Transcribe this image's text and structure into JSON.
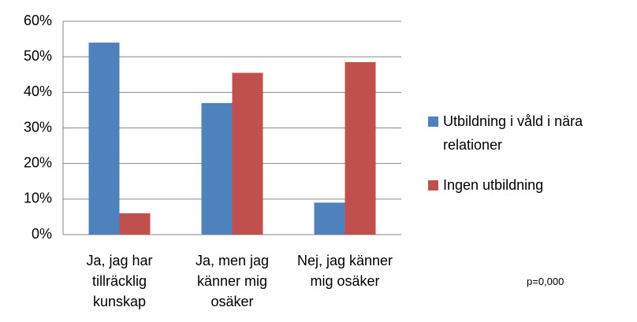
{
  "chart_data": {
    "type": "bar",
    "categories": [
      "Ja, jag har tillräcklig kunskap",
      "Ja, men jag känner mig osäker",
      "Nej, jag känner mig osäker"
    ],
    "series": [
      {
        "name": "Utbildning i våld i nära relationer",
        "color": "#4f81bd",
        "values": [
          54,
          37,
          9
        ]
      },
      {
        "name": "Ingen utbildning",
        "color": "#c0504d",
        "values": [
          6,
          45.5,
          48.5
        ]
      }
    ],
    "ylim": [
      0,
      60
    ],
    "yticks": [
      {
        "value": 0,
        "label": "0%"
      },
      {
        "value": 10,
        "label": "10%"
      },
      {
        "value": 20,
        "label": "20%"
      },
      {
        "value": 30,
        "label": "30%"
      },
      {
        "value": 40,
        "label": "40%"
      },
      {
        "value": 50,
        "label": "50%"
      },
      {
        "value": 60,
        "label": "60%"
      }
    ],
    "grid": true,
    "legend": "right",
    "annotation": "p=0,000"
  }
}
